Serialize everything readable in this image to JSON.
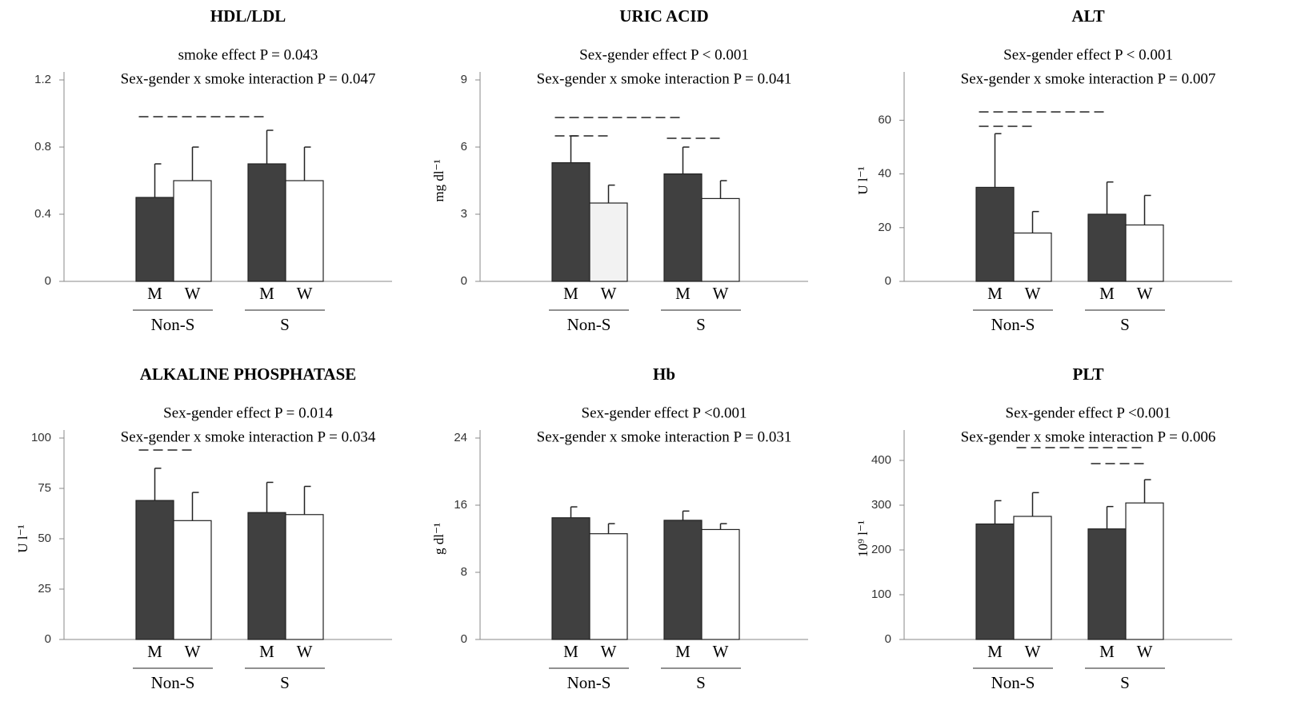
{
  "chart_data": [
    {
      "type": "bar",
      "title": "HDL/LDL",
      "annotations": [
        "smoke effect P = 0.043",
        "Sex-gender x smoke interaction  P = 0.047"
      ],
      "categories": [
        "M",
        "W",
        "M",
        "W"
      ],
      "groups": [
        "Non-S",
        "S"
      ],
      "values": [
        0.5,
        0.6,
        0.7,
        0.6
      ],
      "errors": [
        0.2,
        0.2,
        0.2,
        0.2
      ],
      "colors": [
        "#404040",
        "#ffffff",
        "#404040",
        "#ffffff"
      ],
      "ylim": [
        0,
        1.2
      ],
      "yticks": [
        0,
        0.4,
        0.8,
        1.2
      ]
    },
    {
      "type": "bar",
      "title": "URIC ACID",
      "annotations": [
        "Sex-gender effect P < 0.001",
        "Sex-gender x smoke interaction   P = 0.041"
      ],
      "ylabel": "mg dl⁻¹",
      "categories": [
        "M",
        "W",
        "M",
        "W"
      ],
      "groups": [
        "Non-S",
        "S"
      ],
      "values": [
        5.3,
        3.5,
        4.8,
        3.7
      ],
      "errors": [
        1.2,
        0.8,
        1.2,
        0.8
      ],
      "colors": [
        "#404040",
        "#f2f2f2",
        "#404040",
        "#ffffff"
      ],
      "ylim": [
        0,
        9
      ],
      "yticks": [
        0,
        3,
        6,
        9
      ]
    },
    {
      "type": "bar",
      "title": "ALT",
      "annotations": [
        "Sex-gender effect P < 0.001",
        "Sex-gender x smoke interaction   P = 0.007"
      ],
      "ylabel": "U l⁻¹",
      "categories": [
        "M",
        "W",
        "M",
        "W"
      ],
      "groups": [
        "Non-S",
        "S"
      ],
      "values": [
        35,
        18,
        25,
        21
      ],
      "errors": [
        20,
        8,
        12,
        11
      ],
      "colors": [
        "#404040",
        "#ffffff",
        "#404040",
        "#ffffff"
      ],
      "ylim": [
        0,
        75
      ],
      "yticks": [
        0,
        20,
        40,
        60
      ]
    },
    {
      "type": "bar",
      "title": "ALKALINE  PHOSPHATASE",
      "annotations": [
        "Sex-gender effect P = 0.014",
        "Sex-gender x smoke interaction   P = 0.034"
      ],
      "ylabel": "U l⁻¹",
      "categories": [
        "M",
        "W",
        "M",
        "W"
      ],
      "groups": [
        "Non-S",
        "S"
      ],
      "values": [
        69,
        59,
        63,
        62
      ],
      "errors": [
        16,
        14,
        15,
        14
      ],
      "colors": [
        "#404040",
        "#ffffff",
        "#404040",
        "#ffffff"
      ],
      "ylim": [
        0,
        100
      ],
      "yticks": [
        0,
        25,
        50,
        75,
        100
      ]
    },
    {
      "type": "bar",
      "title": "Hb",
      "annotations": [
        "Sex-gender effect P <0.001",
        "Sex-gender x smoke interaction   P = 0.031"
      ],
      "ylabel": "g dl⁻¹",
      "categories": [
        "M",
        "W",
        "M",
        "W"
      ],
      "groups": [
        "Non-S",
        "S"
      ],
      "values": [
        14.5,
        12.6,
        14.2,
        13.1
      ],
      "errors": [
        1.3,
        1.2,
        1.1,
        0.7
      ],
      "colors": [
        "#404040",
        "#ffffff",
        "#404040",
        "#ffffff"
      ],
      "ylim": [
        0,
        24
      ],
      "yticks": [
        0,
        8,
        16,
        24
      ]
    },
    {
      "type": "bar",
      "title": "PLT",
      "annotations": [
        "Sex-gender effect P <0.001",
        "Sex-gender x smoke interaction   P = 0.006"
      ],
      "ylabel": "10⁹ l⁻¹",
      "categories": [
        "M",
        "W",
        "M",
        "W"
      ],
      "groups": [
        "Non-S",
        "S"
      ],
      "values": [
        258,
        275,
        247,
        305
      ],
      "errors": [
        52,
        53,
        50,
        52
      ],
      "colors": [
        "#404040",
        "#ffffff",
        "#404040",
        "#ffffff"
      ],
      "ylim": [
        0,
        450
      ],
      "yticks": [
        0,
        100,
        200,
        300,
        400
      ]
    }
  ]
}
